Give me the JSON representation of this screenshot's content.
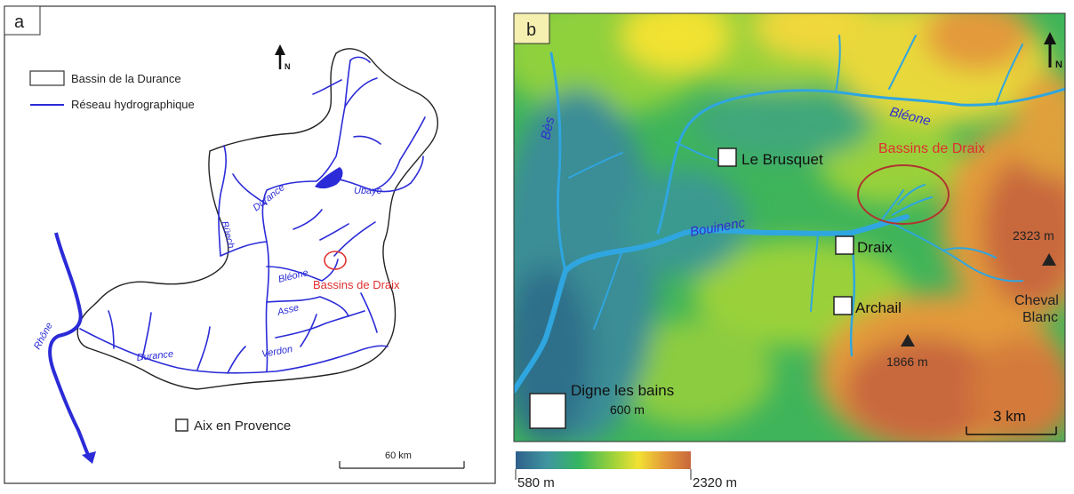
{
  "panel_a": {
    "label": "a",
    "legend": {
      "basin_label": "Bassin de la Durance",
      "network_label": "Réseau hydrographique"
    },
    "north_letter": "N",
    "rivers": {
      "durance_upper": "Durance",
      "ubaye": "Ubaye",
      "buech": "Büech",
      "bleone": "Bléone",
      "asse": "Asse",
      "verdon": "Verdon",
      "durance_lower": "Durance",
      "rhone": "Rhône"
    },
    "study_site": "Bassins de Draix",
    "city": "Aix en Provence",
    "scale_label": "60 km"
  },
  "panel_b": {
    "label": "b",
    "north_letter": "N",
    "rivers": {
      "bes": "Bès",
      "bleone": "Bléone",
      "bouinenc": "Bouinenc"
    },
    "study_site": "Bassins de Draix",
    "places": {
      "le_brusquet": "Le Brusquet",
      "draix": "Draix",
      "archail": "Archail",
      "digne": "Digne les bains",
      "digne_elev": "600 m"
    },
    "peaks": {
      "cheval_blanc_elev": "2323 m",
      "cheval_blanc_name_1": "Cheval",
      "cheval_blanc_name_2": "Blanc",
      "south_peak_elev": "1866 m"
    },
    "scale_label": "3 km",
    "colorbar": {
      "min_label": "580 m",
      "max_label": "2320 m",
      "colors": [
        "#2f5f8a",
        "#3f96a0",
        "#35b560",
        "#9ad13a",
        "#f2e233",
        "#e39a3a",
        "#c8673d"
      ]
    }
  },
  "colors": {
    "river": "#2b2bd8",
    "river_b": "#2fa6e0",
    "site": "#e03030",
    "site_b": "#b03530",
    "basin_fill": "#ffffff"
  }
}
